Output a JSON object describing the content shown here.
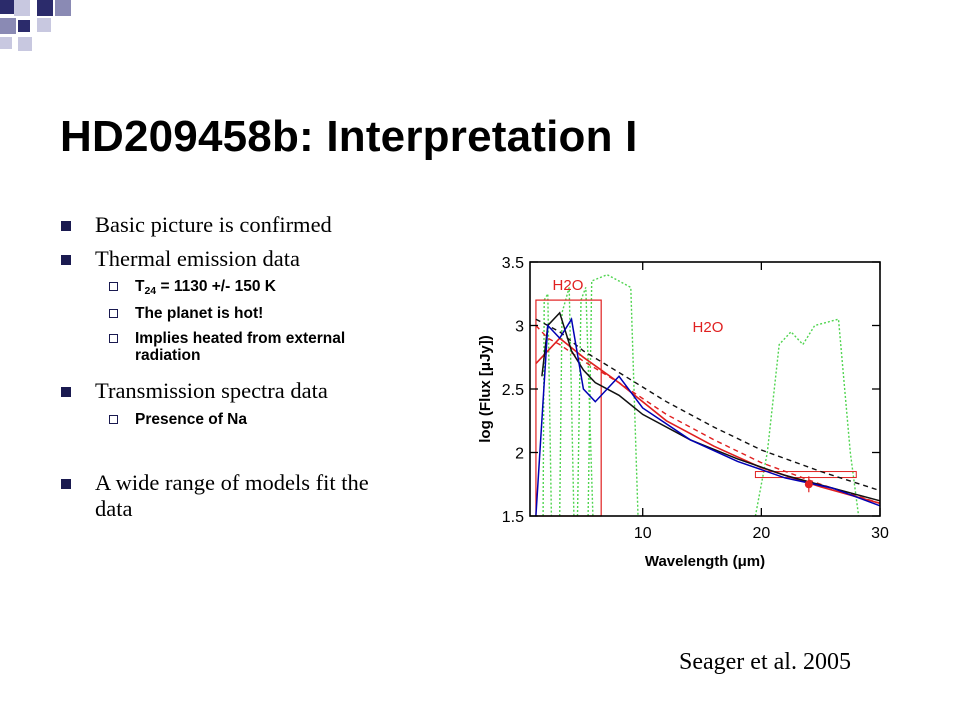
{
  "slide": {
    "title": "HD209458b: Interpretation I",
    "citation": "Seager et al. 2005"
  },
  "bullets": {
    "b1": "Basic picture is confirmed",
    "b2": "Thermal emission data",
    "b2_sub1_main": "T",
    "b2_sub1_sub": "24",
    "b2_sub1_rest": " = 1130 +/- 150 K",
    "b2_sub2": "The planet is hot!",
    "b2_sub3_line1": "Implies heated from external",
    "b2_sub3_line2": "radiation",
    "b3": "Transmission spectra data",
    "b3_sub1": "Presence of Na",
    "b4_line1": "A wide range of models fit the",
    "b4_line2": "data"
  },
  "colors": {
    "bullet": "#1a1a50",
    "deco_dark": "#2b2b6b",
    "deco_mid": "#8a8ab4",
    "deco_light": "#c8c8e0",
    "black_curve": "#111111",
    "blue_curve": "#0000b4",
    "red_model": "#e02020",
    "green_filter": "#4fd44f"
  },
  "chart_data": {
    "type": "line",
    "xlabel": "Wavelength (μm)",
    "ylabel": "log (Flux [μJy])",
    "xlim": [
      0.5,
      30
    ],
    "ylim": [
      1.5,
      3.5
    ],
    "xticks": [
      "10",
      "20",
      "30"
    ],
    "yticks": [
      "1.5",
      "2",
      "2.5",
      "3",
      "3.5"
    ],
    "annotations": [
      "H2O",
      "H2O"
    ],
    "series": [
      {
        "x": [
          1,
          2,
          3,
          5,
          8,
          12,
          16,
          20,
          25,
          30
        ],
        "y": [
          3.05,
          3.0,
          2.95,
          2.8,
          2.63,
          2.4,
          2.2,
          2.02,
          1.85,
          1.7
        ]
      },
      {
        "x": [
          1,
          2,
          3,
          5,
          8,
          12,
          16,
          20,
          25,
          30
        ],
        "y": [
          3.0,
          2.9,
          2.85,
          2.72,
          2.55,
          2.3,
          2.1,
          1.92,
          1.75,
          1.6
        ]
      },
      {
        "x": [
          1,
          2,
          3,
          5,
          8,
          12,
          16,
          20,
          25,
          30
        ],
        "y": [
          2.7,
          2.8,
          2.9,
          2.75,
          2.55,
          2.25,
          2.05,
          1.88,
          1.73,
          1.6
        ]
      },
      {
        "x": [
          1.5,
          2,
          3,
          4,
          5,
          6,
          8,
          10,
          14,
          18,
          22,
          26,
          30
        ],
        "y": [
          2.6,
          3.0,
          3.1,
          2.8,
          2.65,
          2.55,
          2.45,
          2.3,
          2.1,
          1.95,
          1.82,
          1.72,
          1.62
        ]
      },
      {
        "x": [
          1,
          2,
          3,
          4,
          5,
          6,
          8,
          10,
          14,
          18,
          22,
          26,
          30
        ],
        "y": [
          1.5,
          3.0,
          2.9,
          3.05,
          2.5,
          2.4,
          2.6,
          2.35,
          2.1,
          1.93,
          1.8,
          1.72,
          1.58
        ]
      }
    ],
    "points": [
      {
        "x": 24,
        "y": 1.75
      }
    ]
  }
}
